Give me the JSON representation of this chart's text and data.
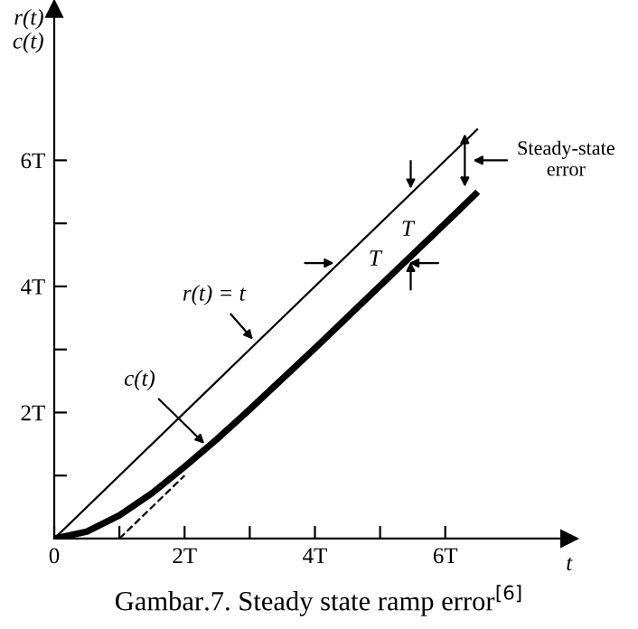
{
  "chart_data": {
    "type": "line",
    "title": "Gambar.7. Steady state ramp error$^{[6]}$",
    "xlabel": "t",
    "ylabel": "r(t)\nc(t)",
    "series": [
      {
        "x": [
          0,
          6.5
        ],
        "values": [
          0,
          6.5
        ],
        "color": "#000000"
      },
      {
        "x": [
          0,
          0.5,
          1,
          1.5,
          2,
          2.5,
          3,
          4,
          5,
          6,
          6.5
        ],
        "values": [
          0,
          0.11,
          0.37,
          0.72,
          1.14,
          1.58,
          2.05,
          3.02,
          4.01,
          5.0,
          5.5
        ],
        "color": "#000000"
      },
      {
        "x": [
          1,
          2
        ],
        "values": [
          0,
          1
        ],
        "color": "#000000",
        "line_style": "dashed"
      }
    ],
    "xlim": [
      0,
      7.9
    ],
    "ylim": [
      0,
      8.4
    ],
    "xticks": [
      {
        "value": 0,
        "label": "0"
      },
      {
        "value": 1,
        "label": null
      },
      {
        "value": 2,
        "label": "2T"
      },
      {
        "value": 3,
        "label": null
      },
      {
        "value": 4,
        "label": "4T"
      },
      {
        "value": 5,
        "label": null
      },
      {
        "value": 6,
        "label": "6T"
      }
    ],
    "yticks": [
      {
        "value": 1,
        "label": null
      },
      {
        "value": 2,
        "label": "2T"
      },
      {
        "value": 3,
        "label": null
      },
      {
        "value": 4,
        "label": "4T"
      },
      {
        "value": 5,
        "label": null
      },
      {
        "value": 6,
        "label": "6T"
      }
    ],
    "annotations": [
      {
        "text": "r(t) = t",
        "x": 3.1,
        "y": 3.1
      },
      {
        "text": "c(t)",
        "x": 2.36,
        "y": 1.45
      },
      {
        "text": "T",
        "x": 5.47,
        "y": 4.47
      },
      {
        "text": "T",
        "x": 4.37,
        "y": 4.37
      },
      "Steady-state\nerror"
    ],
    "grid": false
  }
}
